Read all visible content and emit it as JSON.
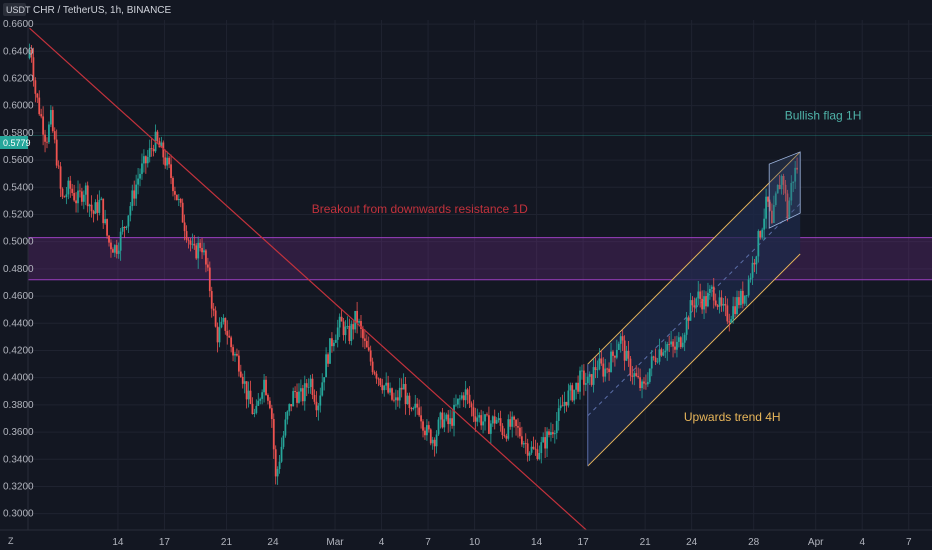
{
  "header": {
    "currency_badge": "USDT",
    "symbol_line": "CHR / TetherUS, 1h, BINANCE"
  },
  "price_badge": {
    "label": "0.5779"
  },
  "bottom_left_label": "Z",
  "chart_data": {
    "type": "candlestick",
    "title": "",
    "xlabel": "",
    "ylabel": "",
    "ylim": [
      0.288,
      0.663
    ],
    "y_ticks": [
      0.3,
      0.32,
      0.34,
      0.36,
      0.38,
      0.4,
      0.42,
      0.44,
      0.46,
      0.48,
      0.5,
      0.52,
      0.54,
      0.56,
      0.58,
      0.6,
      0.62,
      0.64,
      0.66
    ],
    "y_tick_labels": [
      "0.3000",
      "0.3200",
      "0.3400",
      "0.3600",
      "0.3800",
      "0.4000",
      "0.4200",
      "0.4400",
      "0.4600",
      "0.4800",
      "0.5000",
      "0.5200",
      "0.5400",
      "0.5600",
      "0.5800",
      "0.6000",
      "0.6200",
      "0.6400",
      "0.6600"
    ],
    "x_ticks": [
      {
        "label": "14",
        "day": 14
      },
      {
        "label": "17",
        "day": 17
      },
      {
        "label": "21",
        "day": 21
      },
      {
        "label": "24",
        "day": 24
      },
      {
        "label": "Mar",
        "day": 28
      },
      {
        "label": "4",
        "day": 31
      },
      {
        "label": "7",
        "day": 34
      },
      {
        "label": "10",
        "day": 37
      },
      {
        "label": "14",
        "day": 41
      },
      {
        "label": "17",
        "day": 44
      },
      {
        "label": "21",
        "day": 48
      },
      {
        "label": "24",
        "day": 51
      },
      {
        "label": "28",
        "day": 55
      },
      {
        "label": "Apr",
        "day": 59
      },
      {
        "label": "4",
        "day": 62
      },
      {
        "label": "7",
        "day": 65
      }
    ],
    "x_range_days": [
      8.2,
      66.5
    ],
    "last_price": 0.5779,
    "price_path": [
      [
        8.3,
        0.635
      ],
      [
        8.5,
        0.645
      ],
      [
        8.8,
        0.61
      ],
      [
        9.2,
        0.59
      ],
      [
        9.5,
        0.575
      ],
      [
        9.8,
        0.59
      ],
      [
        10.2,
        0.56
      ],
      [
        10.5,
        0.53
      ],
      [
        11.0,
        0.54
      ],
      [
        11.5,
        0.53
      ],
      [
        12.0,
        0.54
      ],
      [
        12.5,
        0.52
      ],
      [
        13.0,
        0.53
      ],
      [
        13.5,
        0.5
      ],
      [
        14.0,
        0.495
      ],
      [
        14.5,
        0.51
      ],
      [
        15.0,
        0.53
      ],
      [
        15.5,
        0.55
      ],
      [
        16.0,
        0.56
      ],
      [
        16.5,
        0.575
      ],
      [
        17.0,
        0.565
      ],
      [
        17.5,
        0.55
      ],
      [
        18.0,
        0.53
      ],
      [
        18.5,
        0.51
      ],
      [
        19.0,
        0.49
      ],
      [
        19.5,
        0.5
      ],
      [
        20.0,
        0.47
      ],
      [
        20.5,
        0.43
      ],
      [
        21.0,
        0.44
      ],
      [
        21.5,
        0.42
      ],
      [
        22.0,
        0.41
      ],
      [
        22.5,
        0.385
      ],
      [
        23.0,
        0.37
      ],
      [
        23.5,
        0.4
      ],
      [
        24.0,
        0.38
      ],
      [
        24.3,
        0.325
      ],
      [
        24.6,
        0.345
      ],
      [
        25.0,
        0.37
      ],
      [
        25.5,
        0.39
      ],
      [
        26.0,
        0.385
      ],
      [
        26.5,
        0.4
      ],
      [
        27.0,
        0.38
      ],
      [
        27.5,
        0.41
      ],
      [
        28.0,
        0.43
      ],
      [
        28.5,
        0.44
      ],
      [
        29.0,
        0.43
      ],
      [
        29.5,
        0.445
      ],
      [
        30.0,
        0.425
      ],
      [
        30.5,
        0.41
      ],
      [
        31.0,
        0.4
      ],
      [
        31.5,
        0.39
      ],
      [
        32.0,
        0.38
      ],
      [
        32.5,
        0.395
      ],
      [
        33.0,
        0.37
      ],
      [
        33.5,
        0.38
      ],
      [
        34.0,
        0.36
      ],
      [
        34.5,
        0.355
      ],
      [
        35.0,
        0.37
      ],
      [
        35.5,
        0.365
      ],
      [
        36.0,
        0.38
      ],
      [
        36.5,
        0.39
      ],
      [
        37.0,
        0.375
      ],
      [
        37.5,
        0.37
      ],
      [
        38.0,
        0.365
      ],
      [
        38.5,
        0.37
      ],
      [
        39.0,
        0.36
      ],
      [
        39.5,
        0.365
      ],
      [
        40.0,
        0.36
      ],
      [
        40.5,
        0.35
      ],
      [
        41.0,
        0.345
      ],
      [
        41.5,
        0.35
      ],
      [
        42.0,
        0.36
      ],
      [
        42.5,
        0.37
      ],
      [
        43.0,
        0.385
      ],
      [
        43.5,
        0.39
      ],
      [
        44.0,
        0.4
      ],
      [
        44.5,
        0.395
      ],
      [
        45.0,
        0.41
      ],
      [
        45.5,
        0.405
      ],
      [
        46.0,
        0.415
      ],
      [
        46.5,
        0.43
      ],
      [
        47.0,
        0.41
      ],
      [
        47.5,
        0.4
      ],
      [
        48.0,
        0.39
      ],
      [
        48.5,
        0.41
      ],
      [
        49.0,
        0.42
      ],
      [
        49.5,
        0.425
      ],
      [
        50.0,
        0.42
      ],
      [
        50.5,
        0.43
      ],
      [
        51.0,
        0.45
      ],
      [
        51.5,
        0.46
      ],
      [
        52.0,
        0.455
      ],
      [
        52.5,
        0.465
      ],
      [
        53.0,
        0.45
      ],
      [
        53.5,
        0.445
      ],
      [
        54.0,
        0.455
      ],
      [
        54.5,
        0.46
      ],
      [
        55.0,
        0.48
      ],
      [
        55.5,
        0.505
      ],
      [
        56.0,
        0.53
      ],
      [
        56.3,
        0.51
      ],
      [
        56.6,
        0.535
      ],
      [
        57.0,
        0.55
      ],
      [
        57.3,
        0.52
      ],
      [
        57.6,
        0.545
      ],
      [
        57.9,
        0.555
      ]
    ],
    "horizontal_zone": {
      "from": 0.472,
      "to": 0.503,
      "color": "#7b2d8e"
    },
    "downtrend_line": {
      "from": {
        "day": 8.3,
        "price": 0.657
      },
      "to": {
        "day": 44.5,
        "price": 0.285
      },
      "color": "#c2323c"
    },
    "channel": {
      "upper": {
        "from": {
          "day": 44.3,
          "price": 0.41
        },
        "to": {
          "day": 58.0,
          "price": 0.566
        }
      },
      "lower": {
        "from": {
          "day": 44.3,
          "price": 0.335
        },
        "to": {
          "day": 58.0,
          "price": 0.491
        }
      },
      "mid": {
        "from": {
          "day": 44.3,
          "price": 0.372
        },
        "to": {
          "day": 58.0,
          "price": 0.528
        }
      },
      "color": "#e8b65a",
      "fill": "#1e2a4a"
    },
    "flag": {
      "upper": {
        "from": {
          "day": 56.0,
          "price": 0.557
        },
        "to": {
          "day": 58.0,
          "price": 0.566
        }
      },
      "lower": {
        "from": {
          "day": 56.0,
          "price": 0.51
        },
        "to": {
          "day": 58.0,
          "price": 0.521
        }
      },
      "color": "#9fb6e0"
    },
    "annotations": [
      {
        "text": "Breakout from downwards resistance 1D",
        "day": 26.5,
        "price": 0.521,
        "color": "#c2323c"
      },
      {
        "text": "Upwards trend 4H",
        "day": 50.5,
        "price": 0.368,
        "color": "#e8b65a"
      },
      {
        "text": "Bullish flag 1H",
        "day": 57.0,
        "price": 0.59,
        "color": "#4fb3a9"
      }
    ],
    "colors": {
      "up": "#26a69a",
      "down": "#ef5350",
      "grid": "#1f2330",
      "axis_bg": "#131722",
      "badge": "#26a69a"
    }
  }
}
